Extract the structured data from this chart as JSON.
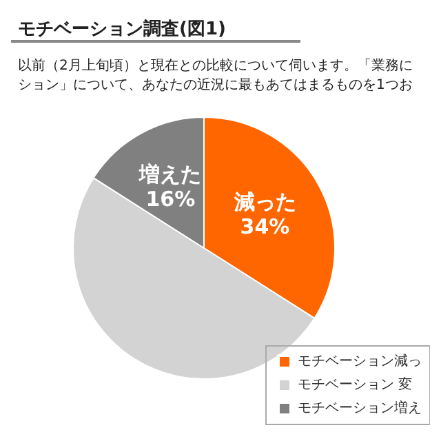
{
  "chart_data": {
    "type": "pie",
    "title": "モチベーション調査(図1)",
    "subtitle": "以前（2月上旬頃）と現在との比較について伺います。「業務に",
    "annotations": [
      "ション」について、あなたの近況に最もあてはまるものを1つお"
    ],
    "categories": [
      "モチベーション減っ",
      "モチベーション 変",
      "モチベーション増え"
    ],
    "values": [
      34,
      50,
      16
    ],
    "colors": [
      "#ff6600",
      "#d3d3d3",
      "#808080"
    ],
    "value_labels": [
      "減った\n34%",
      null,
      "増えた\n16%"
    ],
    "legend": "bottom right"
  }
}
